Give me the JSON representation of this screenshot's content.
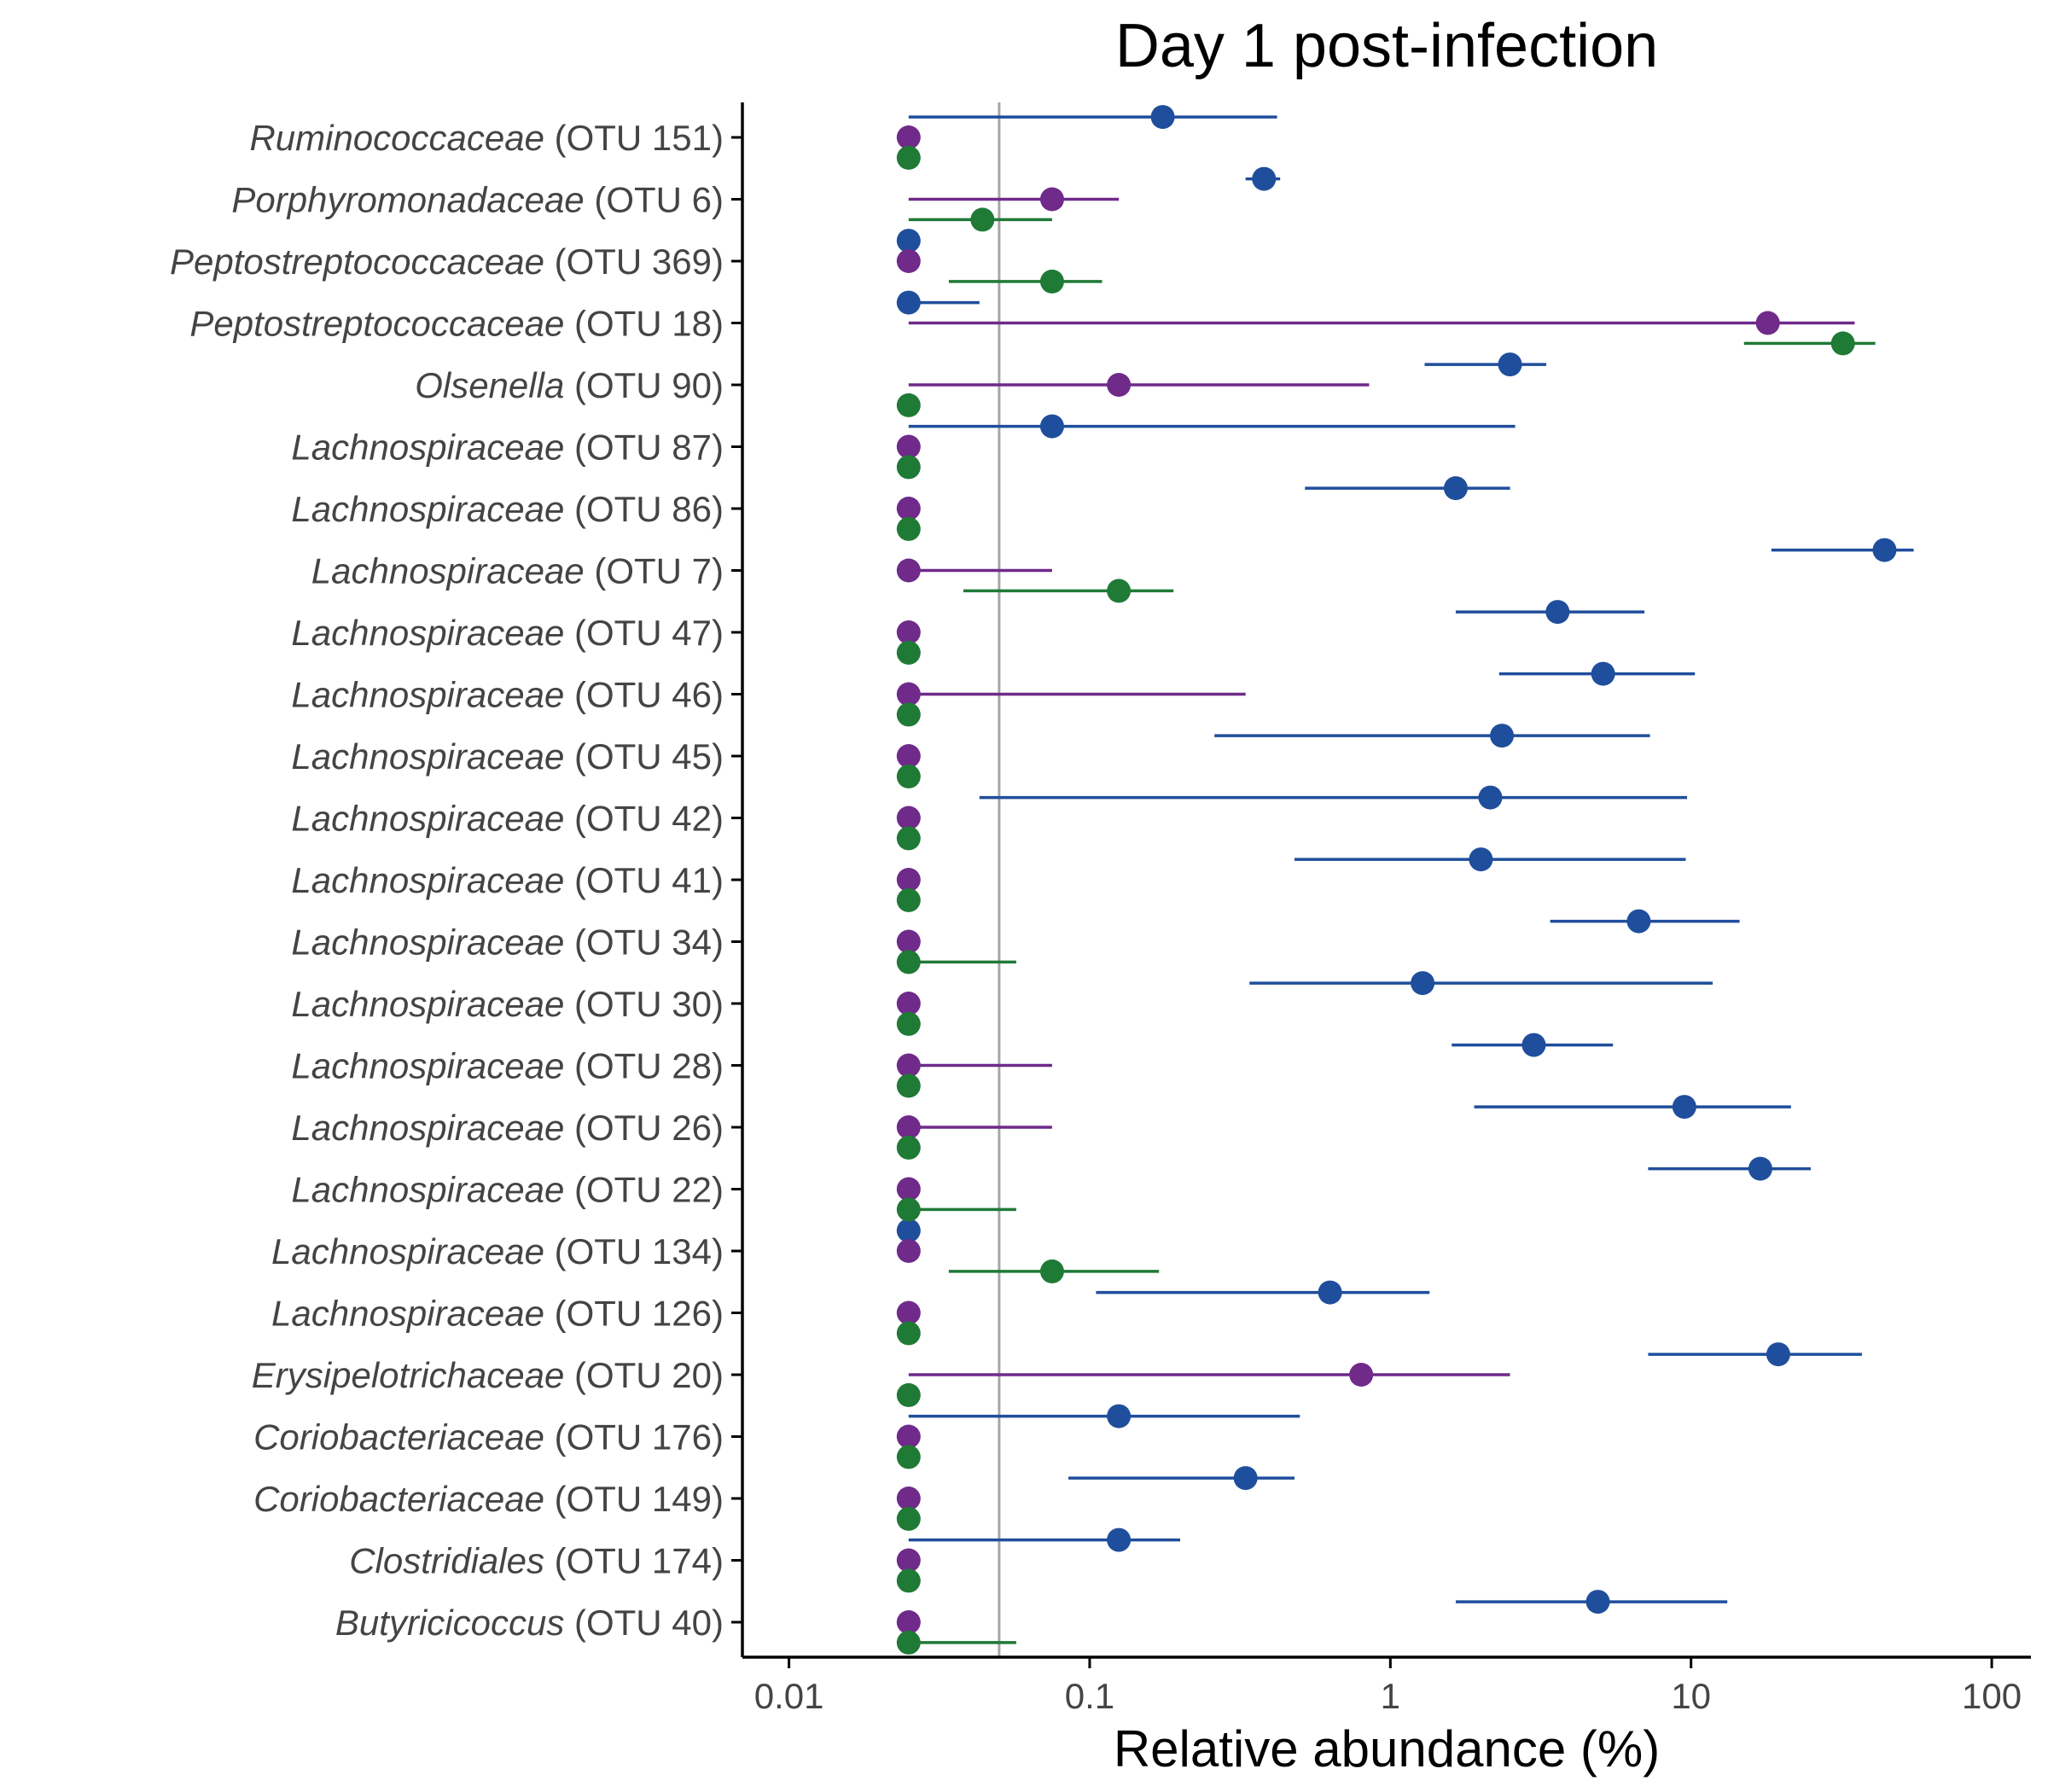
{
  "chart_data": {
    "type": "scatter",
    "title": "Day 1 post-infection",
    "xlabel": "Relative abundance (%)",
    "ylabel": "",
    "xscale": "log",
    "xlim": [
      0.007,
      135
    ],
    "xticks": [
      {
        "value": 0.01,
        "label": "0.01"
      },
      {
        "value": 0.1,
        "label": "0.1"
      },
      {
        "value": 1,
        "label": "1"
      },
      {
        "value": 10,
        "label": "10"
      },
      {
        "value": 100,
        "label": "100"
      }
    ],
    "reference_line": 0.05,
    "grid": false,
    "legend": "none",
    "colors": {
      "blue": "#1f4e9c",
      "purple": "#6f2a8a",
      "green": "#1f7a36",
      "reference": "#a6a6a6"
    },
    "categories": [
      {
        "genus": "Ruminococcaceae",
        "otu": "(OTU 151)"
      },
      {
        "genus": "Porphyromonadaceae",
        "otu": "(OTU 6)"
      },
      {
        "genus": "Peptostreptococcaceae",
        "otu": "(OTU 369)"
      },
      {
        "genus": "Peptostreptococcaceae",
        "otu": "(OTU 18)"
      },
      {
        "genus": "Olsenella",
        "otu": "(OTU 90)"
      },
      {
        "genus": "Lachnospiraceae",
        "otu": "(OTU 87)"
      },
      {
        "genus": "Lachnospiraceae",
        "otu": "(OTU 86)"
      },
      {
        "genus": "Lachnospiraceae",
        "otu": "(OTU 7)"
      },
      {
        "genus": "Lachnospiraceae",
        "otu": "(OTU 47)"
      },
      {
        "genus": "Lachnospiraceae",
        "otu": "(OTU 46)"
      },
      {
        "genus": "Lachnospiraceae",
        "otu": "(OTU 45)"
      },
      {
        "genus": "Lachnospiraceae",
        "otu": "(OTU 42)"
      },
      {
        "genus": "Lachnospiraceae",
        "otu": "(OTU 41)"
      },
      {
        "genus": "Lachnospiraceae",
        "otu": "(OTU 34)"
      },
      {
        "genus": "Lachnospiraceae",
        "otu": "(OTU 30)"
      },
      {
        "genus": "Lachnospiraceae",
        "otu": "(OTU 28)"
      },
      {
        "genus": "Lachnospiraceae",
        "otu": "(OTU 26)"
      },
      {
        "genus": "Lachnospiraceae",
        "otu": "(OTU 22)"
      },
      {
        "genus": "Lachnospiraceae",
        "otu": "(OTU 134)"
      },
      {
        "genus": "Lachnospiraceae",
        "otu": "(OTU 126)"
      },
      {
        "genus": "Erysipelotrichaceae",
        "otu": "(OTU 20)"
      },
      {
        "genus": "Coriobacteriaceae",
        "otu": "(OTU 176)"
      },
      {
        "genus": "Coriobacteriaceae",
        "otu": "(OTU 149)"
      },
      {
        "genus": "Clostridiales",
        "otu": "(OTU 174)"
      },
      {
        "genus": "Butyricicoccus",
        "otu": "(OTU 40)"
      }
    ],
    "series": [
      {
        "color": "blue",
        "offset": -0.33,
        "points": [
          {
            "median": 0.175,
            "lo": 0.025,
            "hi": 0.42
          },
          {
            "median": 0.38,
            "lo": 0.33,
            "hi": 0.43
          },
          {
            "median": 0.025,
            "lo": 0.025,
            "hi": 0.025
          },
          {
            "median": 0.025,
            "lo": 0.025,
            "hi": 0.043
          },
          {
            "median": 2.5,
            "lo": 1.3,
            "hi": 3.3
          },
          {
            "median": 0.075,
            "lo": 0.025,
            "hi": 2.6
          },
          {
            "median": 1.65,
            "lo": 0.52,
            "hi": 2.5
          },
          {
            "median": 44,
            "lo": 18.5,
            "hi": 55
          },
          {
            "median": 3.6,
            "lo": 1.65,
            "hi": 7.0
          },
          {
            "median": 5.1,
            "lo": 2.3,
            "hi": 10.3
          },
          {
            "median": 2.35,
            "lo": 0.26,
            "hi": 7.3
          },
          {
            "median": 2.15,
            "lo": 0.043,
            "hi": 9.7
          },
          {
            "median": 2.0,
            "lo": 0.48,
            "hi": 9.6
          },
          {
            "median": 6.7,
            "lo": 3.4,
            "hi": 14.5
          },
          {
            "median": 1.28,
            "lo": 0.34,
            "hi": 11.8
          },
          {
            "median": 3.0,
            "lo": 1.6,
            "hi": 5.5
          },
          {
            "median": 9.5,
            "lo": 1.9,
            "hi": 21.5
          },
          {
            "median": 17,
            "lo": 7.2,
            "hi": 25
          },
          {
            "median": 0.025,
            "lo": 0.025,
            "hi": 0.025
          },
          {
            "median": 0.63,
            "lo": 0.105,
            "hi": 1.35
          },
          {
            "median": 19.5,
            "lo": 7.2,
            "hi": 37
          },
          {
            "median": 0.125,
            "lo": 0.025,
            "hi": 0.5
          },
          {
            "median": 0.33,
            "lo": 0.085,
            "hi": 0.48
          },
          {
            "median": 0.125,
            "lo": 0.025,
            "hi": 0.2
          },
          {
            "median": 4.9,
            "lo": 1.65,
            "hi": 13.2
          }
        ]
      },
      {
        "color": "purple",
        "offset": 0,
        "points": [
          {
            "median": 0.025,
            "lo": 0.025,
            "hi": 0.025
          },
          {
            "median": 0.075,
            "lo": 0.025,
            "hi": 0.125
          },
          {
            "median": 0.025,
            "lo": 0.025,
            "hi": 0.025
          },
          {
            "median": 18,
            "lo": 0.025,
            "hi": 35
          },
          {
            "median": 0.125,
            "lo": 0.025,
            "hi": 0.85
          },
          {
            "median": 0.025,
            "lo": 0.025,
            "hi": 0.025
          },
          {
            "median": 0.025,
            "lo": 0.025,
            "hi": 0.025
          },
          {
            "median": 0.025,
            "lo": 0.025,
            "hi": 0.075
          },
          {
            "median": 0.025,
            "lo": 0.025,
            "hi": 0.025
          },
          {
            "median": 0.025,
            "lo": 0.025,
            "hi": 0.33
          },
          {
            "median": 0.025,
            "lo": 0.025,
            "hi": 0.025
          },
          {
            "median": 0.025,
            "lo": 0.025,
            "hi": 0.025
          },
          {
            "median": 0.025,
            "lo": 0.025,
            "hi": 0.025
          },
          {
            "median": 0.025,
            "lo": 0.025,
            "hi": 0.025
          },
          {
            "median": 0.025,
            "lo": 0.025,
            "hi": 0.025
          },
          {
            "median": 0.025,
            "lo": 0.025,
            "hi": 0.075
          },
          {
            "median": 0.025,
            "lo": 0.025,
            "hi": 0.075
          },
          {
            "median": 0.025,
            "lo": 0.025,
            "hi": 0.025
          },
          {
            "median": 0.025,
            "lo": 0.025,
            "hi": 0.025
          },
          {
            "median": 0.025,
            "lo": 0.025,
            "hi": 0.025
          },
          {
            "median": 0.8,
            "lo": 0.025,
            "hi": 2.5
          },
          {
            "median": 0.025,
            "lo": 0.025,
            "hi": 0.025
          },
          {
            "median": 0.025,
            "lo": 0.025,
            "hi": 0.025
          },
          {
            "median": 0.025,
            "lo": 0.025,
            "hi": 0.025
          },
          {
            "median": 0.025,
            "lo": 0.025,
            "hi": 0.025
          }
        ]
      },
      {
        "color": "green",
        "offset": 0.33,
        "points": [
          {
            "median": 0.025,
            "lo": 0.025,
            "hi": 0.025
          },
          {
            "median": 0.044,
            "lo": 0.025,
            "hi": 0.075
          },
          {
            "median": 0.075,
            "lo": 0.034,
            "hi": 0.11
          },
          {
            "median": 32,
            "lo": 15,
            "hi": 41
          },
          {
            "median": 0.025,
            "lo": 0.025,
            "hi": 0.025
          },
          {
            "median": 0.025,
            "lo": 0.025,
            "hi": 0.025
          },
          {
            "median": 0.025,
            "lo": 0.025,
            "hi": 0.025
          },
          {
            "median": 0.125,
            "lo": 0.038,
            "hi": 0.19
          },
          {
            "median": 0.025,
            "lo": 0.025,
            "hi": 0.025
          },
          {
            "median": 0.025,
            "lo": 0.025,
            "hi": 0.025
          },
          {
            "median": 0.025,
            "lo": 0.025,
            "hi": 0.025
          },
          {
            "median": 0.025,
            "lo": 0.025,
            "hi": 0.025
          },
          {
            "median": 0.025,
            "lo": 0.025,
            "hi": 0.025
          },
          {
            "median": 0.025,
            "lo": 0.025,
            "hi": 0.057
          },
          {
            "median": 0.025,
            "lo": 0.025,
            "hi": 0.025
          },
          {
            "median": 0.025,
            "lo": 0.025,
            "hi": 0.025
          },
          {
            "median": 0.025,
            "lo": 0.025,
            "hi": 0.025
          },
          {
            "median": 0.025,
            "lo": 0.025,
            "hi": 0.057
          },
          {
            "median": 0.075,
            "lo": 0.034,
            "hi": 0.17
          },
          {
            "median": 0.025,
            "lo": 0.025,
            "hi": 0.025
          },
          {
            "median": 0.025,
            "lo": 0.025,
            "hi": 0.025
          },
          {
            "median": 0.025,
            "lo": 0.025,
            "hi": 0.025
          },
          {
            "median": 0.025,
            "lo": 0.025,
            "hi": 0.025
          },
          {
            "median": 0.025,
            "lo": 0.025,
            "hi": 0.025
          },
          {
            "median": 0.025,
            "lo": 0.025,
            "hi": 0.057
          }
        ]
      }
    ]
  }
}
